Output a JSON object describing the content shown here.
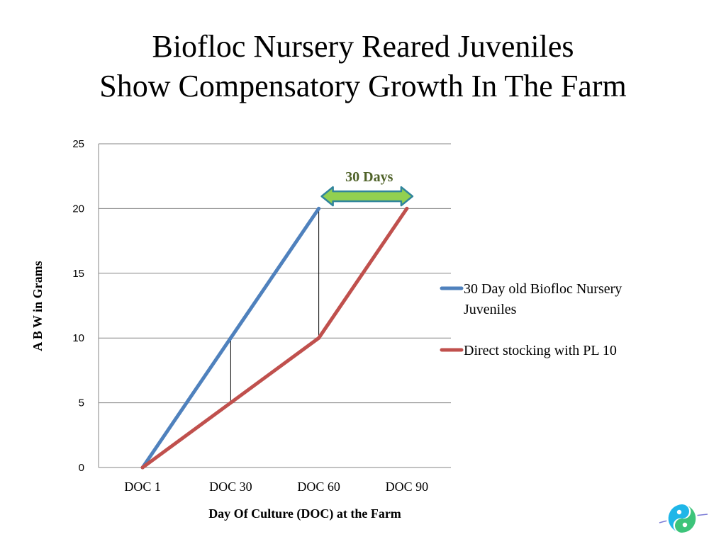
{
  "slide": {
    "title_line1": "Biofloc Nursery Reared Juveniles",
    "title_line2": "Show Compensatory Growth In The Farm"
  },
  "chart_data": {
    "type": "line",
    "categories": [
      "DOC 1",
      "DOC 30",
      "DOC 60",
      "DOC 90"
    ],
    "series": [
      {
        "name": "30 Day old Biofloc Nursery Juveniles",
        "legend_lines": [
          "30 Day old Biofloc Nursery",
          "Juveniles"
        ],
        "values": [
          0,
          10,
          20,
          null
        ],
        "color": "#4f81bd"
      },
      {
        "name": "Direct stocking with PL 10",
        "legend_lines": [
          "Direct stocking with PL 10"
        ],
        "values": [
          0,
          5,
          10,
          20
        ],
        "color": "#c0504d"
      }
    ],
    "xlabel": "Day Of Culture (DOC) at the Farm",
    "ylabel": "A B W in Grams",
    "ylim": [
      0,
      25
    ],
    "yticks": [
      0,
      5,
      10,
      15,
      20,
      25
    ],
    "grid": true,
    "legend_position": "right",
    "annotations": [
      {
        "text": "30 Days",
        "type": "double-arrow",
        "from_category": "DOC 60",
        "to_category": "DOC 90",
        "y": 21,
        "color": "#92d050",
        "outline": "#31859c",
        "text_color": "#4f6228"
      }
    ],
    "drop_lines": [
      {
        "category": "DOC 30",
        "from": 5,
        "to": 10
      },
      {
        "category": "DOC 60",
        "from": 10,
        "to": 20
      }
    ]
  }
}
